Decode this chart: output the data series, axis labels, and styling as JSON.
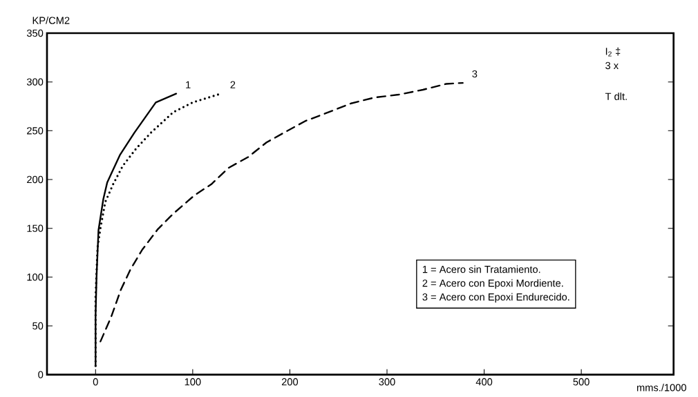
{
  "chart_data": {
    "type": "line",
    "xlabel": "mms./1000",
    "ylabel": "KP/CM2",
    "xlim": [
      -50,
      595
    ],
    "ylim": [
      0,
      350
    ],
    "xticks": [
      0,
      100,
      200,
      300,
      400,
      500
    ],
    "yticks": [
      0,
      50,
      100,
      150,
      200,
      250,
      300,
      350
    ],
    "series": [
      {
        "name": "1",
        "color": "#000000",
        "line_style": "solid",
        "x": [
          0,
          0,
          1,
          3,
          8,
          12,
          25,
          40,
          62,
          83
        ],
        "values": [
          9,
          60,
          100,
          148,
          180,
          197,
          225,
          248,
          279,
          288
        ]
      },
      {
        "name": "2",
        "color": "#000000",
        "line_style": "dotted",
        "x": [
          0,
          0,
          2,
          5,
          10,
          18,
          28,
          42,
          57,
          80,
          100,
          129
        ],
        "values": [
          9,
          80,
          130,
          150,
          177,
          195,
          214,
          232,
          248,
          269,
          279,
          288
        ]
      },
      {
        "name": "3",
        "color": "#000000",
        "line_style": "dashed",
        "x": [
          5,
          16,
          26,
          36,
          48,
          64,
          80,
          102,
          119,
          137,
          157,
          176,
          194,
          216,
          240,
          263,
          287,
          312,
          337,
          361,
          378
        ],
        "values": [
          34,
          59,
          87,
          108,
          128,
          149,
          165,
          184,
          195,
          212,
          223,
          238,
          248,
          260,
          269,
          278,
          284,
          287,
          292,
          298,
          299
        ]
      }
    ],
    "annotations": [
      "1 = Acero sin Tratamiento.",
      "2 = Acero con Epoxi Mordiente.",
      "3 = Acero con Epoxi Endurecido.",
      "I$_{2}$ ‡",
      "3 x",
      "T dlt."
    ],
    "legend": false
  }
}
